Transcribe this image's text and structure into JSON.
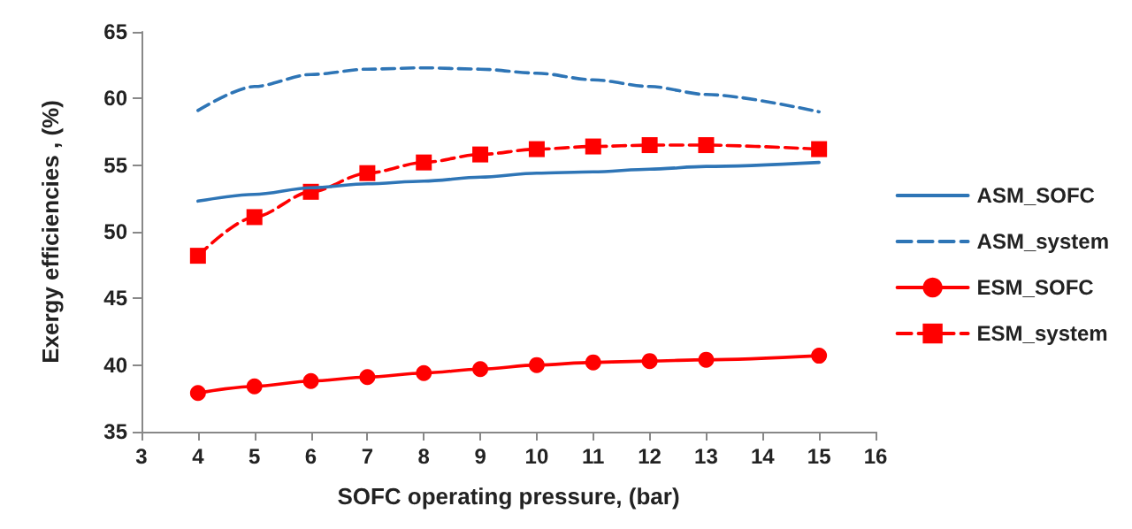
{
  "chart_data": {
    "type": "line",
    "xlabel": "SOFC operating pressure, (bar)",
    "ylabel": "Exergy efficiencies , (%)",
    "x": [
      4,
      5,
      6,
      7,
      8,
      9,
      10,
      11,
      12,
      13,
      15
    ],
    "xlim": [
      3,
      16
    ],
    "xticks": [
      3,
      4,
      5,
      6,
      7,
      8,
      9,
      10,
      11,
      12,
      13,
      14,
      15,
      16
    ],
    "ylim": [
      35,
      65
    ],
    "yticks": [
      35,
      40,
      45,
      50,
      55,
      60,
      65
    ],
    "grid": false,
    "legend": "right",
    "series": [
      {
        "name": "ASM_SOFC",
        "color": "#2e75b6",
        "marker": "none",
        "line_style": "solid",
        "values": [
          52.3,
          52.8,
          53.3,
          53.6,
          53.8,
          54.1,
          54.4,
          54.5,
          54.7,
          54.9,
          55.2
        ]
      },
      {
        "name": "ASM_system",
        "color": "#2e75b6",
        "marker": "none",
        "line_style": "dashed",
        "values": [
          59.1,
          60.9,
          61.8,
          62.2,
          62.3,
          62.2,
          61.9,
          61.4,
          60.9,
          60.3,
          59.0
        ]
      },
      {
        "name": "ESM_SOFC",
        "color": "#ff0000",
        "marker": "circle",
        "line_style": "solid",
        "values": [
          37.9,
          38.4,
          38.8,
          39.1,
          39.4,
          39.7,
          40.0,
          40.2,
          40.3,
          40.4,
          40.7
        ]
      },
      {
        "name": "ESM_system",
        "color": "#ff0000",
        "marker": "square",
        "line_style": "dashed",
        "values": [
          48.2,
          51.1,
          53.0,
          54.4,
          55.2,
          55.8,
          56.2,
          56.4,
          56.5,
          56.5,
          56.2
        ]
      }
    ]
  }
}
